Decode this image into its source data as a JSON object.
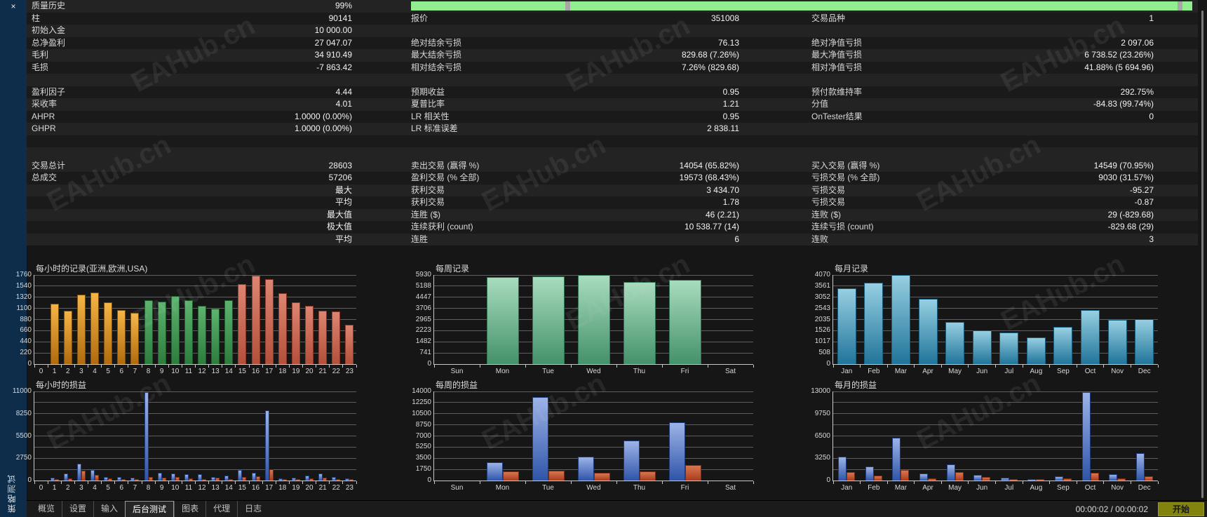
{
  "window": {
    "vertical_title": "策略测试",
    "close_icon": "×"
  },
  "watermark": {
    "text": "EAHub.cn"
  },
  "table": {
    "progress": {
      "bar_color": "#90ee90",
      "notch_color": "#a6a6a6"
    },
    "rows": [
      {
        "progress": true,
        "cells": [
          "质量历史",
          "99%",
          "",
          "",
          "",
          ""
        ]
      },
      {
        "cells": [
          "柱",
          "90141",
          "报价",
          "351008",
          "交易品种",
          "1"
        ]
      },
      {
        "cells": [
          "初始入金",
          "10 000.00",
          "",
          "",
          "",
          ""
        ]
      },
      {
        "cells": [
          "总净盈利",
          "27 047.07",
          "绝对结余亏损",
          "76.13",
          "绝对净值亏损",
          "2 097.06"
        ]
      },
      {
        "cells": [
          "毛利",
          "34 910.49",
          "最大结余亏损",
          "829.68 (7.26%)",
          "最大净值亏损",
          "6 738.52 (23.26%)"
        ]
      },
      {
        "cells": [
          "毛损",
          "-7 863.42",
          "相对结余亏损",
          "7.26% (829.68)",
          "相对净值亏损",
          "41.88% (5 694.96)"
        ]
      },
      {
        "cells": [
          "",
          "",
          "",
          "",
          "",
          ""
        ]
      },
      {
        "cells": [
          "盈利因子",
          "4.44",
          "预期收益",
          "0.95",
          "预付款维持率",
          "292.75%"
        ]
      },
      {
        "cells": [
          "采收率",
          "4.01",
          "夏普比率",
          "1.21",
          "分值",
          "-84.83 (99.74%)"
        ]
      },
      {
        "cells": [
          "AHPR",
          "1.0000 (0.00%)",
          "LR 相关性",
          "0.95",
          "OnTester结果",
          "0"
        ]
      },
      {
        "cells": [
          "GHPR",
          "1.0000 (0.00%)",
          "LR 标准误差",
          "2 838.11",
          "",
          ""
        ]
      },
      {
        "cells": [
          "",
          "",
          "",
          "",
          "",
          ""
        ]
      },
      {
        "cells": [
          "",
          "",
          "",
          "",
          "",
          ""
        ]
      },
      {
        "cells": [
          "交易总计",
          "28603",
          "卖出交易 (赢得 %)",
          "14054 (65.82%)",
          "买入交易 (赢得 %)",
          "14549 (70.95%)"
        ]
      },
      {
        "cells": [
          "总成交",
          "57206",
          "盈利交易 (% 全部)",
          "19573 (68.43%)",
          "亏损交易 (% 全部)",
          "9030 (31.57%)"
        ]
      },
      {
        "cells": [
          "",
          "最大",
          "获利交易",
          "3 434.70",
          "亏损交易",
          "-95.27"
        ]
      },
      {
        "cells": [
          "",
          "平均",
          "获利交易",
          "1.78",
          "亏损交易",
          "-0.87"
        ]
      },
      {
        "cells": [
          "",
          "最大值",
          "连胜 ($)",
          "46 (2.21)",
          "连败 ($)",
          "29 (-829.68)"
        ]
      },
      {
        "cells": [
          "",
          "极大值",
          "连续获利 (count)",
          "10 538.77 (14)",
          "连续亏损 (count)",
          "-829.68 (29)"
        ]
      },
      {
        "cells": [
          "",
          "平均",
          "连胜",
          "6",
          "连败",
          "3"
        ]
      }
    ]
  },
  "charts": [
    {
      "id": "c1",
      "name": "hourly-records",
      "type": "bar",
      "title": "每小时的记录(亚洲,欧洲,USA)",
      "ymax": 1760,
      "yticks": [
        {
          "v": 1760,
          "label": "1760"
        },
        {
          "v": 1540,
          "label": "1540"
        },
        {
          "v": 1320,
          "label": "1320"
        },
        {
          "v": 1100,
          "label": "1100"
        },
        {
          "v": 880,
          "label": "880"
        },
        {
          "v": 660,
          "label": "660"
        },
        {
          "v": 440,
          "label": "440"
        },
        {
          "v": 220,
          "label": "220"
        },
        {
          "v": 0,
          "label": "0"
        }
      ],
      "categories": [
        "0",
        "1",
        "2",
        "3",
        "4",
        "5",
        "6",
        "7",
        "8",
        "9",
        "10",
        "11",
        "12",
        "13",
        "14",
        "15",
        "16",
        "17",
        "18",
        "19",
        "20",
        "21",
        "22",
        "23"
      ],
      "values": [
        0,
        1190,
        1060,
        1370,
        1420,
        1215,
        1065,
        1005,
        1260,
        1240,
        1345,
        1260,
        1150,
        1100,
        1260,
        1580,
        1750,
        1675,
        1395,
        1220,
        1155,
        1060,
        1045,
        770
      ],
      "bar_colors": [
        "none",
        "orange",
        "orange",
        "orange",
        "orange",
        "orange",
        "orange",
        "orange",
        "green",
        "green",
        "green",
        "green",
        "green",
        "green",
        "green",
        "red",
        "red",
        "red",
        "red",
        "red",
        "red",
        "red",
        "red",
        "red"
      ]
    },
    {
      "id": "c2",
      "name": "weekly-records",
      "type": "bar",
      "title": "每周记录",
      "ymax": 5930,
      "yticks": [
        {
          "v": 5930,
          "label": "5930"
        },
        {
          "v": 5188,
          "label": "5188"
        },
        {
          "v": 4447,
          "label": "4447"
        },
        {
          "v": 3706,
          "label": "3706"
        },
        {
          "v": 2965,
          "label": "2965"
        },
        {
          "v": 2223,
          "label": "2223"
        },
        {
          "v": 1482,
          "label": "1482"
        },
        {
          "v": 741,
          "label": "741"
        },
        {
          "v": 0,
          "label": "0"
        }
      ],
      "categories": [
        "Sun",
        "Mon",
        "Tue",
        "Wed",
        "Thu",
        "Fri",
        "Sat"
      ],
      "values": [
        0,
        5790,
        5860,
        5930,
        5470,
        5610,
        0
      ],
      "bar_colors": [
        "none",
        "mint",
        "mint",
        "mint",
        "mint",
        "mint",
        "none"
      ]
    },
    {
      "id": "c3",
      "name": "monthly-records",
      "type": "bar",
      "title": "每月记录",
      "ymax": 4070,
      "yticks": [
        {
          "v": 4070,
          "label": "4070"
        },
        {
          "v": 3561,
          "label": "3561"
        },
        {
          "v": 3052,
          "label": "3052"
        },
        {
          "v": 2543,
          "label": "2543"
        },
        {
          "v": 2035,
          "label": "2035"
        },
        {
          "v": 1526,
          "label": "1526"
        },
        {
          "v": 1017,
          "label": "1017"
        },
        {
          "v": 508,
          "label": "508"
        },
        {
          "v": 0,
          "label": "0"
        }
      ],
      "categories": [
        "Jan",
        "Feb",
        "Mar",
        "Apr",
        "May",
        "Jun",
        "Jul",
        "Aug",
        "Sep",
        "Oct",
        "Nov",
        "Dec"
      ],
      "values": [
        3470,
        3710,
        4070,
        2980,
        1920,
        1545,
        1430,
        1230,
        1700,
        2480,
        2030,
        2065
      ],
      "bar_colors": [
        "teal",
        "teal",
        "teal",
        "teal",
        "teal",
        "teal",
        "teal",
        "teal",
        "teal",
        "teal",
        "teal",
        "teal"
      ]
    },
    {
      "id": "c4",
      "name": "hourly-pnl",
      "type": "bar",
      "title": "每小时的损益",
      "ymax": 11000,
      "yticks": [
        {
          "v": 11000,
          "label": "11000"
        },
        {
          "v": 9625,
          "label": ""
        },
        {
          "v": 8250,
          "label": "8250"
        },
        {
          "v": 6875,
          "label": ""
        },
        {
          "v": 5500,
          "label": "5500"
        },
        {
          "v": 4125,
          "label": ""
        },
        {
          "v": 2750,
          "label": "2750"
        },
        {
          "v": 1375,
          "label": ""
        },
        {
          "v": 0,
          "label": "0"
        }
      ],
      "categories": [
        "0",
        "1",
        "2",
        "3",
        "4",
        "5",
        "6",
        "7",
        "8",
        "9",
        "10",
        "11",
        "12",
        "13",
        "14",
        "15",
        "16",
        "17",
        "18",
        "19",
        "20",
        "21",
        "22",
        "23"
      ],
      "series": {
        "profit": [
          0,
          380,
          900,
          2100,
          1320,
          470,
          420,
          330,
          10950,
          960,
          840,
          790,
          760,
          430,
          590,
          1300,
          960,
          8700,
          240,
          330,
          640,
          830,
          400,
          240
        ],
        "loss": [
          0,
          170,
          290,
          1250,
          680,
          260,
          190,
          140,
          420,
          310,
          470,
          290,
          210,
          340,
          150,
          400,
          480,
          1350,
          130,
          190,
          280,
          390,
          210,
          90
        ]
      }
    },
    {
      "id": "c5",
      "name": "weekly-pnl",
      "type": "bar",
      "title": "每周的损益",
      "ymax": 14000,
      "yticks": [
        {
          "v": 14000,
          "label": "14000"
        },
        {
          "v": 12250,
          "label": "12250"
        },
        {
          "v": 10500,
          "label": "10500"
        },
        {
          "v": 8750,
          "label": "8750"
        },
        {
          "v": 7000,
          "label": "7000"
        },
        {
          "v": 5250,
          "label": "5250"
        },
        {
          "v": 3500,
          "label": "3500"
        },
        {
          "v": 1750,
          "label": "1750"
        },
        {
          "v": 0,
          "label": "0"
        }
      ],
      "categories": [
        "Sun",
        "Mon",
        "Tue",
        "Wed",
        "Thu",
        "Fri",
        "Sat"
      ],
      "series": {
        "profit": [
          0,
          2850,
          13150,
          3700,
          6300,
          9100,
          0
        ],
        "loss": [
          0,
          1400,
          1500,
          1250,
          1400,
          2450,
          0
        ]
      }
    },
    {
      "id": "c6",
      "name": "monthly-pnl",
      "type": "bar",
      "title": "每月的损益",
      "ymax": 13000,
      "yticks": [
        {
          "v": 13000,
          "label": "13000"
        },
        {
          "v": 11375,
          "label": ""
        },
        {
          "v": 9750,
          "label": "9750"
        },
        {
          "v": 8125,
          "label": ""
        },
        {
          "v": 6500,
          "label": "6500"
        },
        {
          "v": 4875,
          "label": ""
        },
        {
          "v": 3250,
          "label": "3250"
        },
        {
          "v": 1625,
          "label": ""
        },
        {
          "v": 0,
          "label": "0"
        }
      ],
      "categories": [
        "Jan",
        "Feb",
        "Mar",
        "Apr",
        "May",
        "Jun",
        "Jul",
        "Aug",
        "Sep",
        "Oct",
        "Nov",
        "Dec"
      ],
      "series": {
        "profit": [
          3450,
          2000,
          6200,
          1050,
          2350,
          800,
          450,
          150,
          650,
          12950,
          900,
          3950
        ],
        "loss": [
          1200,
          700,
          1500,
          350,
          1200,
          500,
          250,
          100,
          350,
          1100,
          300,
          650
        ]
      }
    }
  ],
  "tabs": {
    "items": [
      {
        "label": "概览"
      },
      {
        "label": "设置"
      },
      {
        "label": "输入"
      },
      {
        "label": "后台测试"
      },
      {
        "label": "图表"
      },
      {
        "label": "代理"
      },
      {
        "label": "日志"
      }
    ],
    "active_index": 3
  },
  "status": {
    "time": "00:00:02 / 00:00:02",
    "start_label": "开始"
  }
}
